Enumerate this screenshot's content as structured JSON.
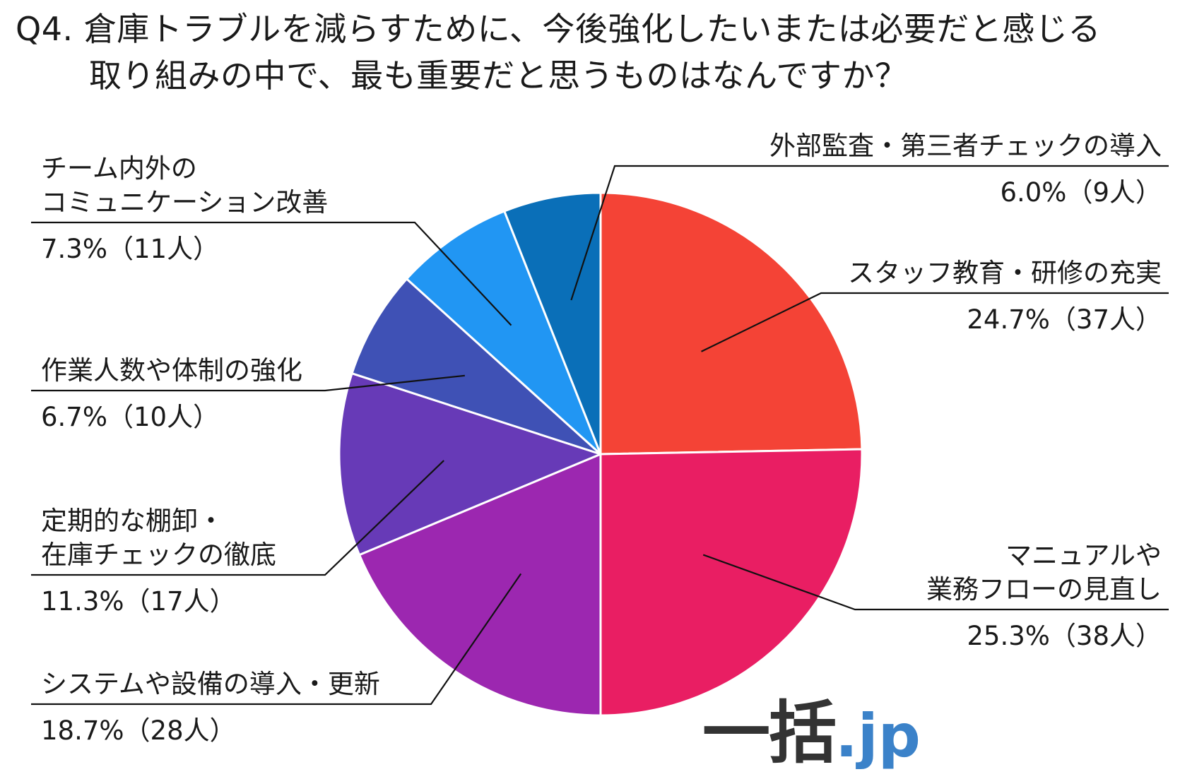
{
  "title": {
    "line1": "Q4. 倉庫トラブルを減らすために、今後強化したいまたは必要だと感じる",
    "line2": "取り組みの中で、最も重要だと思うものはなんですか？"
  },
  "logo": {
    "main": "一括",
    "tld": ".jp"
  },
  "chart_data": {
    "type": "pie",
    "title": "Q4. 倉庫トラブルを減らすために、今後強化したいまたは必要だと感じる取り組みの中で、最も重要だと思うものはなんですか？",
    "unit": "%",
    "start": "12 o'clock",
    "direction": "clockwise",
    "slices": [
      {
        "label_lines": [
          "スタッフ教育・研修の充実"
        ],
        "value": 24.7,
        "count": 37,
        "value_text": "24.7%（37人）",
        "color": "#f44336"
      },
      {
        "label_lines": [
          "マニュアルや",
          "業務フローの見直し"
        ],
        "value": 25.3,
        "count": 38,
        "value_text": "25.3%（38人）",
        "color": "#e91e63"
      },
      {
        "label_lines": [
          "システムや設備の導入・更新"
        ],
        "value": 18.7,
        "count": 28,
        "value_text": "18.7%（28人）",
        "color": "#9c27b0"
      },
      {
        "label_lines": [
          "定期的な棚卸・",
          "在庫チェックの徹底"
        ],
        "value": 11.3,
        "count": 17,
        "value_text": "11.3%（17人）",
        "color": "#673ab7"
      },
      {
        "label_lines": [
          "作業人数や体制の強化"
        ],
        "value": 6.7,
        "count": 10,
        "value_text": "6.7%（10人）",
        "color": "#3f51b5"
      },
      {
        "label_lines": [
          "チーム内外の",
          "コミュニケーション改善"
        ],
        "value": 7.3,
        "count": 11,
        "value_text": "7.3%（11人）",
        "color": "#2196f3"
      },
      {
        "label_lines": [
          "外部監査・第三者チェックの導入"
        ],
        "value": 6.0,
        "count": 9,
        "value_text": "6.0%（9人）",
        "color": "#0a6fb8"
      }
    ]
  }
}
